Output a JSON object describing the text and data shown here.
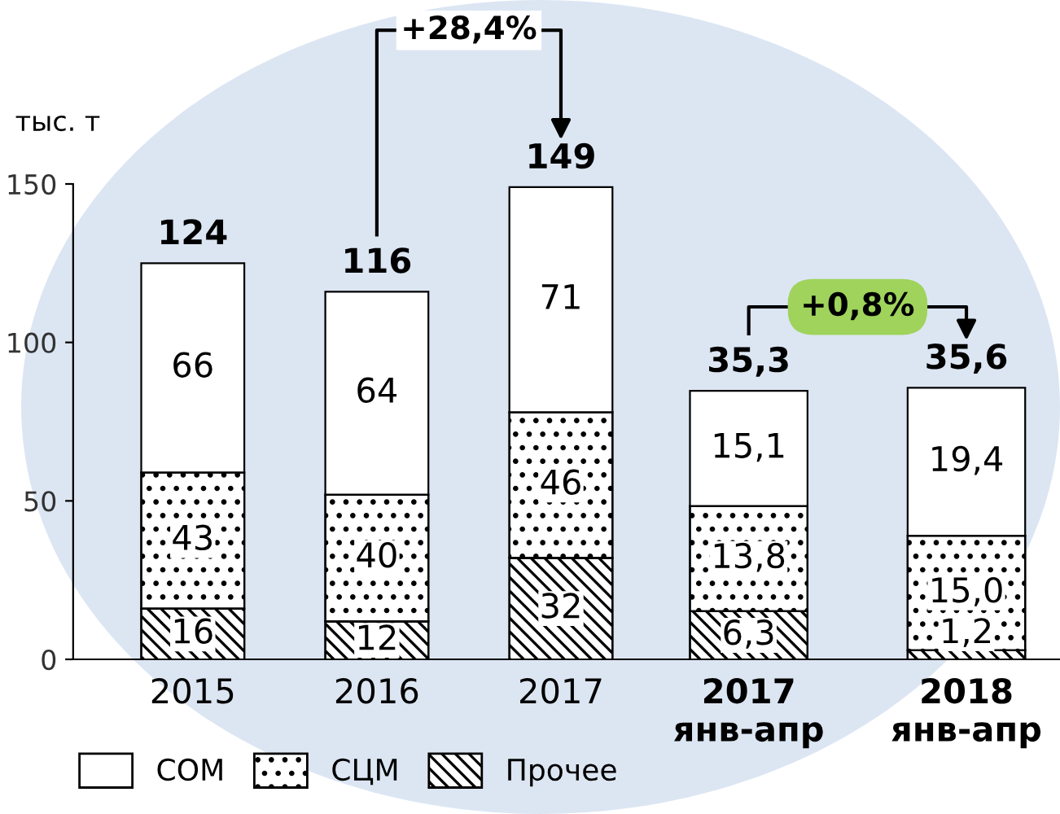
{
  "chart_data": [
    {
      "type": "bar",
      "stacked": true,
      "ylabel": "тыс. т",
      "categories": [
        "2015",
        "2016",
        "2017"
      ],
      "series": [
        {
          "name": "Прочее",
          "color": "#000000",
          "values": [
            16,
            12,
            32
          ]
        },
        {
          "name": "СЦМ",
          "color": "#000000",
          "values": [
            43,
            40,
            46
          ]
        },
        {
          "name": "СОМ",
          "color": "#ffffff",
          "values": [
            66,
            64,
            71
          ]
        }
      ],
      "ylim": [
        0,
        150
      ],
      "yticks": [
        0,
        50,
        100,
        150
      ],
      "data_labels": true,
      "totals": [
        "124",
        "116",
        "149"
      ],
      "legend": "bottom left",
      "grid": false,
      "annotations": [
        "+28,4%"
      ]
    },
    {
      "type": "bar",
      "stacked": true,
      "categories": [
        "2017\nянв-апр",
        "2018\nянв-апр"
      ],
      "series": [
        {
          "color": "#000000",
          "values": [
            6.3,
            1.2
          ],
          "value_labels": [
            "6,3",
            "1,2"
          ]
        },
        {
          "color": "#000000",
          "values": [
            13.8,
            15.0
          ],
          "value_labels": [
            "13,8",
            "15,0"
          ]
        },
        {
          "color": "#ffffff",
          "values": [
            15.1,
            19.4
          ],
          "value_labels": [
            "15,1",
            "19,4"
          ]
        }
      ],
      "tick_labels": "x",
      "totals": [
        "35,3",
        "35,6"
      ],
      "grid": false,
      "annotations": [
        "+0,8%"
      ]
    }
  ]
}
